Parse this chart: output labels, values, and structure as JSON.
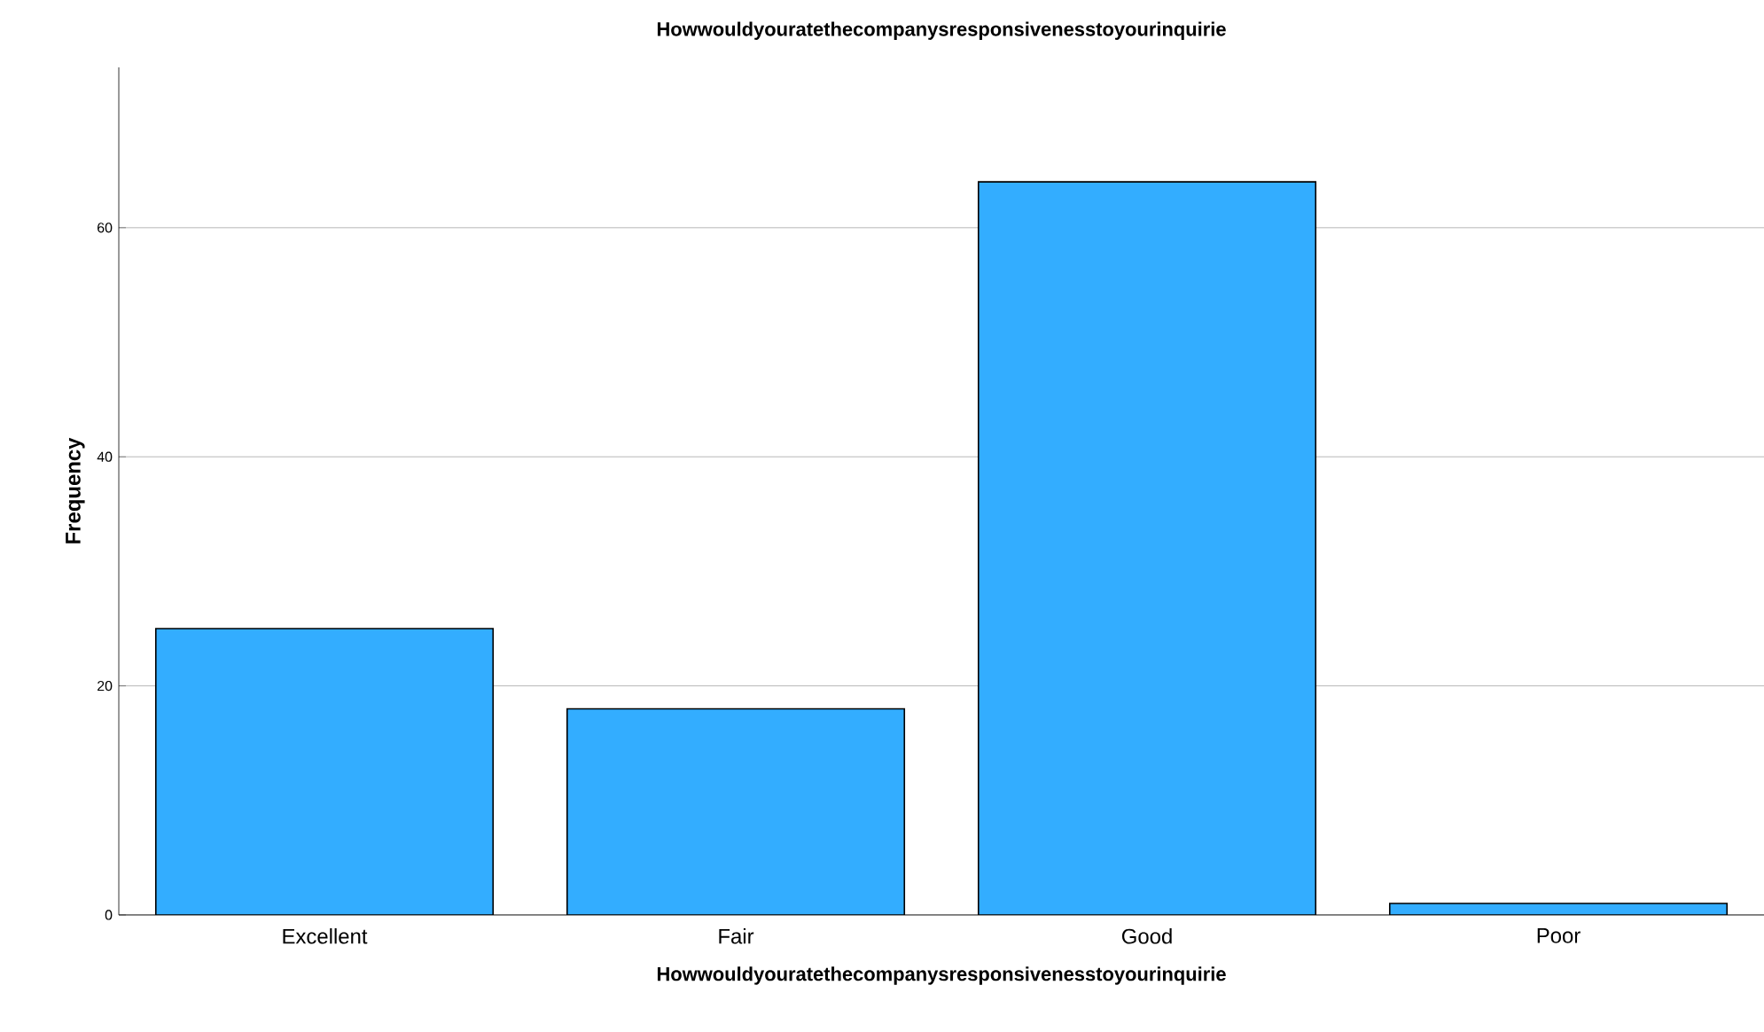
{
  "chart_data": {
    "type": "bar",
    "title": "Howwouldyouratethecompanysresponsivenesstoyourinquirie",
    "xlabel": "Howwouldyouratethecompanysresponsivenesstoyourinquirie",
    "ylabel": "Frequency",
    "categories": [
      "Excellent",
      "Fair",
      "Good",
      "Poor"
    ],
    "values": [
      25,
      18,
      64,
      1
    ],
    "color": "#33adff",
    "ylim": [
      0,
      74
    ],
    "yticks": [
      0,
      20,
      40,
      60
    ],
    "grid": "y"
  }
}
